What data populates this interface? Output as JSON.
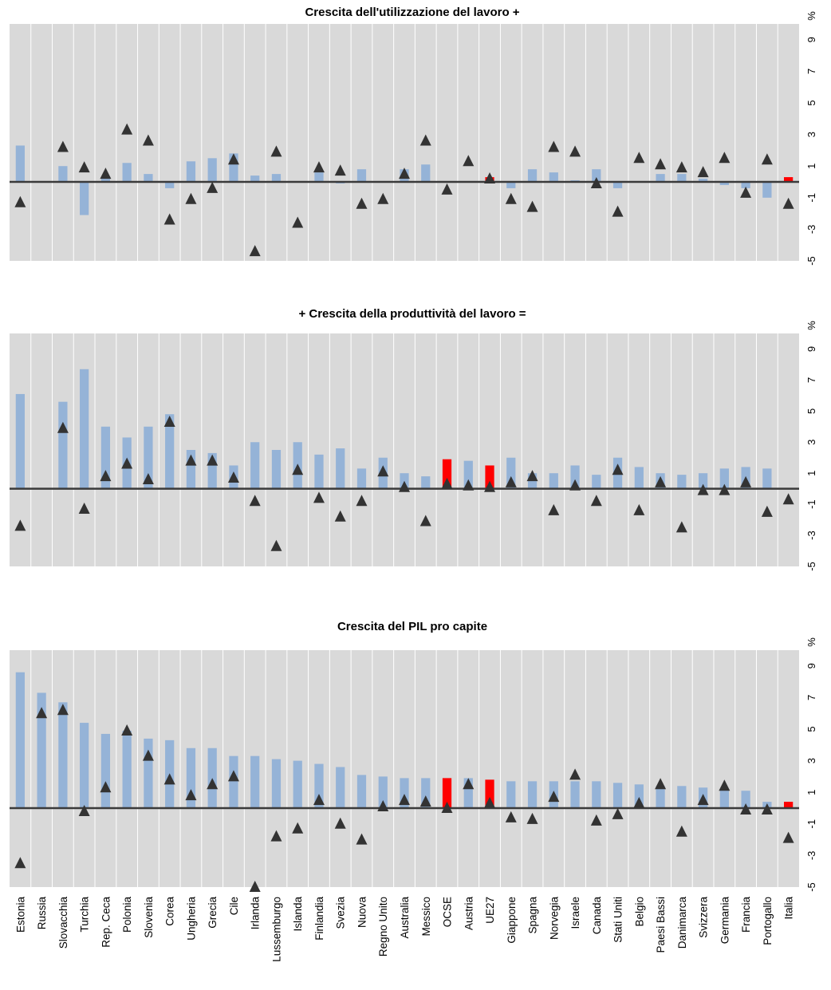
{
  "chart_data": [
    {
      "type": "bar",
      "title": "Crescita dell'utilizzazione del lavoro +",
      "y_unit": "%",
      "ylim": [
        -5,
        10
      ],
      "yticks": [
        -5,
        -3,
        -1,
        1,
        3,
        5,
        7,
        9
      ],
      "grid": "vertical",
      "categories": [
        "Estonia",
        "Russia",
        "Slovacchia",
        "Turchia",
        "Rep. Ceca",
        "Polonia",
        "Slovenia",
        "Corea",
        "Ungheria",
        "Grecia",
        "Cile",
        "Irlanda",
        "Lussemburgo",
        "Islanda",
        "Finlandia",
        "Svezia",
        "Nuova",
        "Regno Unito",
        "Australia",
        "Messico",
        "OCSE",
        "Austria",
        "UE27",
        "Giappone",
        "Spagna",
        "Norvegia",
        "Israele",
        "Canada",
        "Stati Uniti",
        "Belgio",
        "Paesi Bassi",
        "Danimarca",
        "Svizzera",
        "Germania",
        "Francia",
        "Portogallo",
        "Italia"
      ],
      "highlight": [
        "OCSE",
        "UE27",
        "Italia"
      ],
      "series": [
        {
          "kind": "bar",
          "values": [
            2.3,
            0,
            1.0,
            -2.1,
            0.2,
            1.2,
            0.5,
            -0.4,
            1.3,
            1.5,
            1.8,
            0.4,
            0.5,
            0,
            0.6,
            -0.1,
            0.8,
            0,
            0.8,
            1.1,
            0,
            0,
            0.3,
            -0.4,
            0.8,
            0.6,
            0.1,
            0.8,
            -0.4,
            0,
            0.5,
            0.5,
            0.2,
            -0.2,
            -0.4,
            -1.0,
            0.3
          ]
        },
        {
          "kind": "marker",
          "values": [
            -1.3,
            null,
            2.2,
            0.9,
            0.5,
            3.3,
            2.6,
            -2.4,
            -1.1,
            -0.4,
            1.4,
            -4.4,
            1.9,
            -2.6,
            0.9,
            0.7,
            -1.4,
            -1.1,
            0.5,
            2.6,
            -0.5,
            1.3,
            0.2,
            -1.1,
            -1.6,
            2.2,
            1.9,
            -0.1,
            -1.9,
            1.5,
            1.1,
            0.9,
            0.6,
            1.5,
            -0.7,
            1.4,
            -1.4
          ]
        }
      ]
    },
    {
      "type": "bar",
      "title": "+ Crescita della produttività del lavoro =",
      "y_unit": "%",
      "ylim": [
        -5,
        10
      ],
      "yticks": [
        -5,
        -3,
        -1,
        1,
        3,
        5,
        7,
        9
      ],
      "grid": "vertical",
      "categories": [
        "Estonia",
        "Russia",
        "Slovacchia",
        "Turchia",
        "Rep. Ceca",
        "Polonia",
        "Slovenia",
        "Corea",
        "Ungheria",
        "Grecia",
        "Cile",
        "Irlanda",
        "Lussemburgo",
        "Islanda",
        "Finlandia",
        "Svezia",
        "Nuova",
        "Regno Unito",
        "Australia",
        "Messico",
        "OCSE",
        "Austria",
        "UE27",
        "Giappone",
        "Spagna",
        "Norvegia",
        "Israele",
        "Canada",
        "Stati Uniti",
        "Belgio",
        "Paesi Bassi",
        "Danimarca",
        "Svizzera",
        "Germania",
        "Francia",
        "Portogallo",
        "Italia"
      ],
      "highlight": [
        "OCSE",
        "UE27",
        "Italia"
      ],
      "series": [
        {
          "kind": "bar",
          "values": [
            6.1,
            0,
            5.6,
            7.7,
            4.0,
            3.3,
            4.0,
            4.8,
            2.5,
            2.3,
            1.5,
            3.0,
            2.5,
            3.0,
            2.2,
            2.6,
            1.3,
            2.0,
            1.0,
            0.8,
            1.9,
            1.8,
            1.5,
            2.0,
            1.0,
            1.0,
            1.5,
            0.9,
            2.0,
            1.4,
            1.0,
            0.9,
            1.0,
            1.3,
            1.4,
            1.3,
            0
          ]
        },
        {
          "kind": "marker",
          "values": [
            -2.4,
            null,
            3.9,
            -1.3,
            0.8,
            1.6,
            0.6,
            4.3,
            1.8,
            1.8,
            0.7,
            -0.8,
            -3.7,
            1.2,
            -0.6,
            -1.8,
            -0.8,
            1.1,
            0.1,
            -2.1,
            0.3,
            0.2,
            0.1,
            0.4,
            0.8,
            -1.4,
            0.2,
            -0.8,
            1.2,
            -1.4,
            0.4,
            -2.5,
            -0.1,
            -0.1,
            0.4,
            -1.5,
            -0.7
          ]
        }
      ]
    },
    {
      "type": "bar",
      "title": "Crescita del PIL pro capite",
      "y_unit": "%",
      "ylim": [
        -5,
        10
      ],
      "yticks": [
        -5,
        -3,
        -1,
        1,
        3,
        5,
        7,
        9
      ],
      "grid": "vertical",
      "categories": [
        "Estonia",
        "Russia",
        "Slovacchia",
        "Turchia",
        "Rep. Ceca",
        "Polonia",
        "Slovenia",
        "Corea",
        "Ungheria",
        "Grecia",
        "Cile",
        "Irlanda",
        "Lussemburgo",
        "Islanda",
        "Finlandia",
        "Svezia",
        "Nuova",
        "Regno Unito",
        "Australia",
        "Messico",
        "OCSE",
        "Austria",
        "UE27",
        "Giappone",
        "Spagna",
        "Norvegia",
        "Israele",
        "Canada",
        "Stati Uniti",
        "Belgio",
        "Paesi Bassi",
        "Danimarca",
        "Svizzera",
        "Germania",
        "Francia",
        "Portogallo",
        "Italia"
      ],
      "highlight": [
        "OCSE",
        "UE27",
        "Italia"
      ],
      "series": [
        {
          "kind": "bar",
          "values": [
            8.6,
            7.3,
            6.7,
            5.4,
            4.7,
            4.9,
            4.4,
            4.3,
            3.8,
            3.8,
            3.3,
            3.3,
            3.1,
            3.0,
            2.8,
            2.6,
            2.1,
            2.0,
            1.9,
            1.9,
            1.9,
            1.9,
            1.8,
            1.7,
            1.7,
            1.7,
            1.7,
            1.7,
            1.6,
            1.5,
            1.4,
            1.4,
            1.3,
            1.2,
            1.1,
            0.4,
            0.4
          ]
        },
        {
          "kind": "marker",
          "values": [
            -3.5,
            6.0,
            6.2,
            -0.2,
            1.3,
            4.9,
            3.3,
            1.8,
            0.8,
            1.5,
            2.0,
            -5.0,
            -1.8,
            -1.3,
            0.5,
            -1.0,
            -2.0,
            0.1,
            0.5,
            0.4,
            0,
            1.5,
            0.3,
            -0.6,
            -0.7,
            0.7,
            2.1,
            -0.8,
            -0.4,
            0.3,
            1.5,
            -1.5,
            0.5,
            1.4,
            -0.1,
            -0.1,
            -1.9
          ]
        }
      ]
    }
  ],
  "colors": {
    "plot_background": "#d9d9d9",
    "gridline": "#ffffff",
    "bar": "#95b3d7",
    "highlight_bar": "#ff0000",
    "marker": "#333333",
    "zero_line": "#3a3a3a"
  }
}
